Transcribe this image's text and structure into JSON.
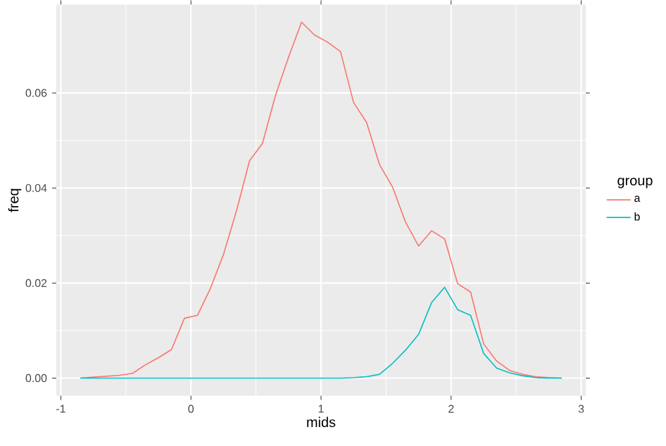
{
  "chart_data": {
    "type": "line",
    "xlabel": "mids",
    "ylabel": "freq",
    "legend_title": "group",
    "x": [
      -0.85,
      -0.75,
      -0.65,
      -0.55,
      -0.45,
      -0.35,
      -0.25,
      -0.15,
      -0.05,
      0.05,
      0.15,
      0.25,
      0.35,
      0.45,
      0.55,
      0.65,
      0.75,
      0.85,
      0.95,
      1.05,
      1.15,
      1.25,
      1.35,
      1.45,
      1.55,
      1.65,
      1.75,
      1.85,
      1.95,
      2.05,
      2.15,
      2.25,
      2.35,
      2.45,
      2.55,
      2.65,
      2.75,
      2.85
    ],
    "series": [
      {
        "name": "a",
        "color": "#f8766d",
        "values": [
          0.0,
          0.0002,
          0.0004,
          0.0006,
          0.001,
          0.0028,
          0.0043,
          0.006,
          0.0126,
          0.0132,
          0.0189,
          0.026,
          0.0352,
          0.0457,
          0.0494,
          0.0595,
          0.0675,
          0.0749,
          0.0722,
          0.0707,
          0.0687,
          0.058,
          0.0538,
          0.0449,
          0.0402,
          0.0328,
          0.0278,
          0.031,
          0.0293,
          0.0199,
          0.0181,
          0.0072,
          0.0036,
          0.0016,
          0.0008,
          0.0003,
          0.0001,
          0.0
        ]
      },
      {
        "name": "b",
        "color": "#00bfc4",
        "values": [
          0,
          0,
          0,
          0,
          0,
          0,
          0,
          0,
          0,
          0,
          0,
          0,
          0,
          0,
          0,
          0,
          0,
          0,
          0,
          0,
          0,
          0.0001,
          0.0003,
          0.0008,
          0.0031,
          0.0059,
          0.0092,
          0.0159,
          0.0191,
          0.0144,
          0.0132,
          0.0052,
          0.0021,
          0.0011,
          0.0005,
          0.0001,
          0.0,
          0.0
        ]
      }
    ],
    "xlim": [
      -1.035,
      3.035
    ],
    "ylim": [
      -0.0037,
      0.0786
    ],
    "xticks": [
      -1,
      0,
      1,
      2,
      3
    ],
    "yticks": [
      {
        "value": 0,
        "label": "0.00"
      },
      {
        "value": 0.02,
        "label": "0.02"
      },
      {
        "value": 0.04,
        "label": "0.04"
      },
      {
        "value": 0.06,
        "label": "0.06"
      }
    ],
    "grid": true,
    "legend": "right",
    "marker": "none",
    "line_style": "solid"
  }
}
